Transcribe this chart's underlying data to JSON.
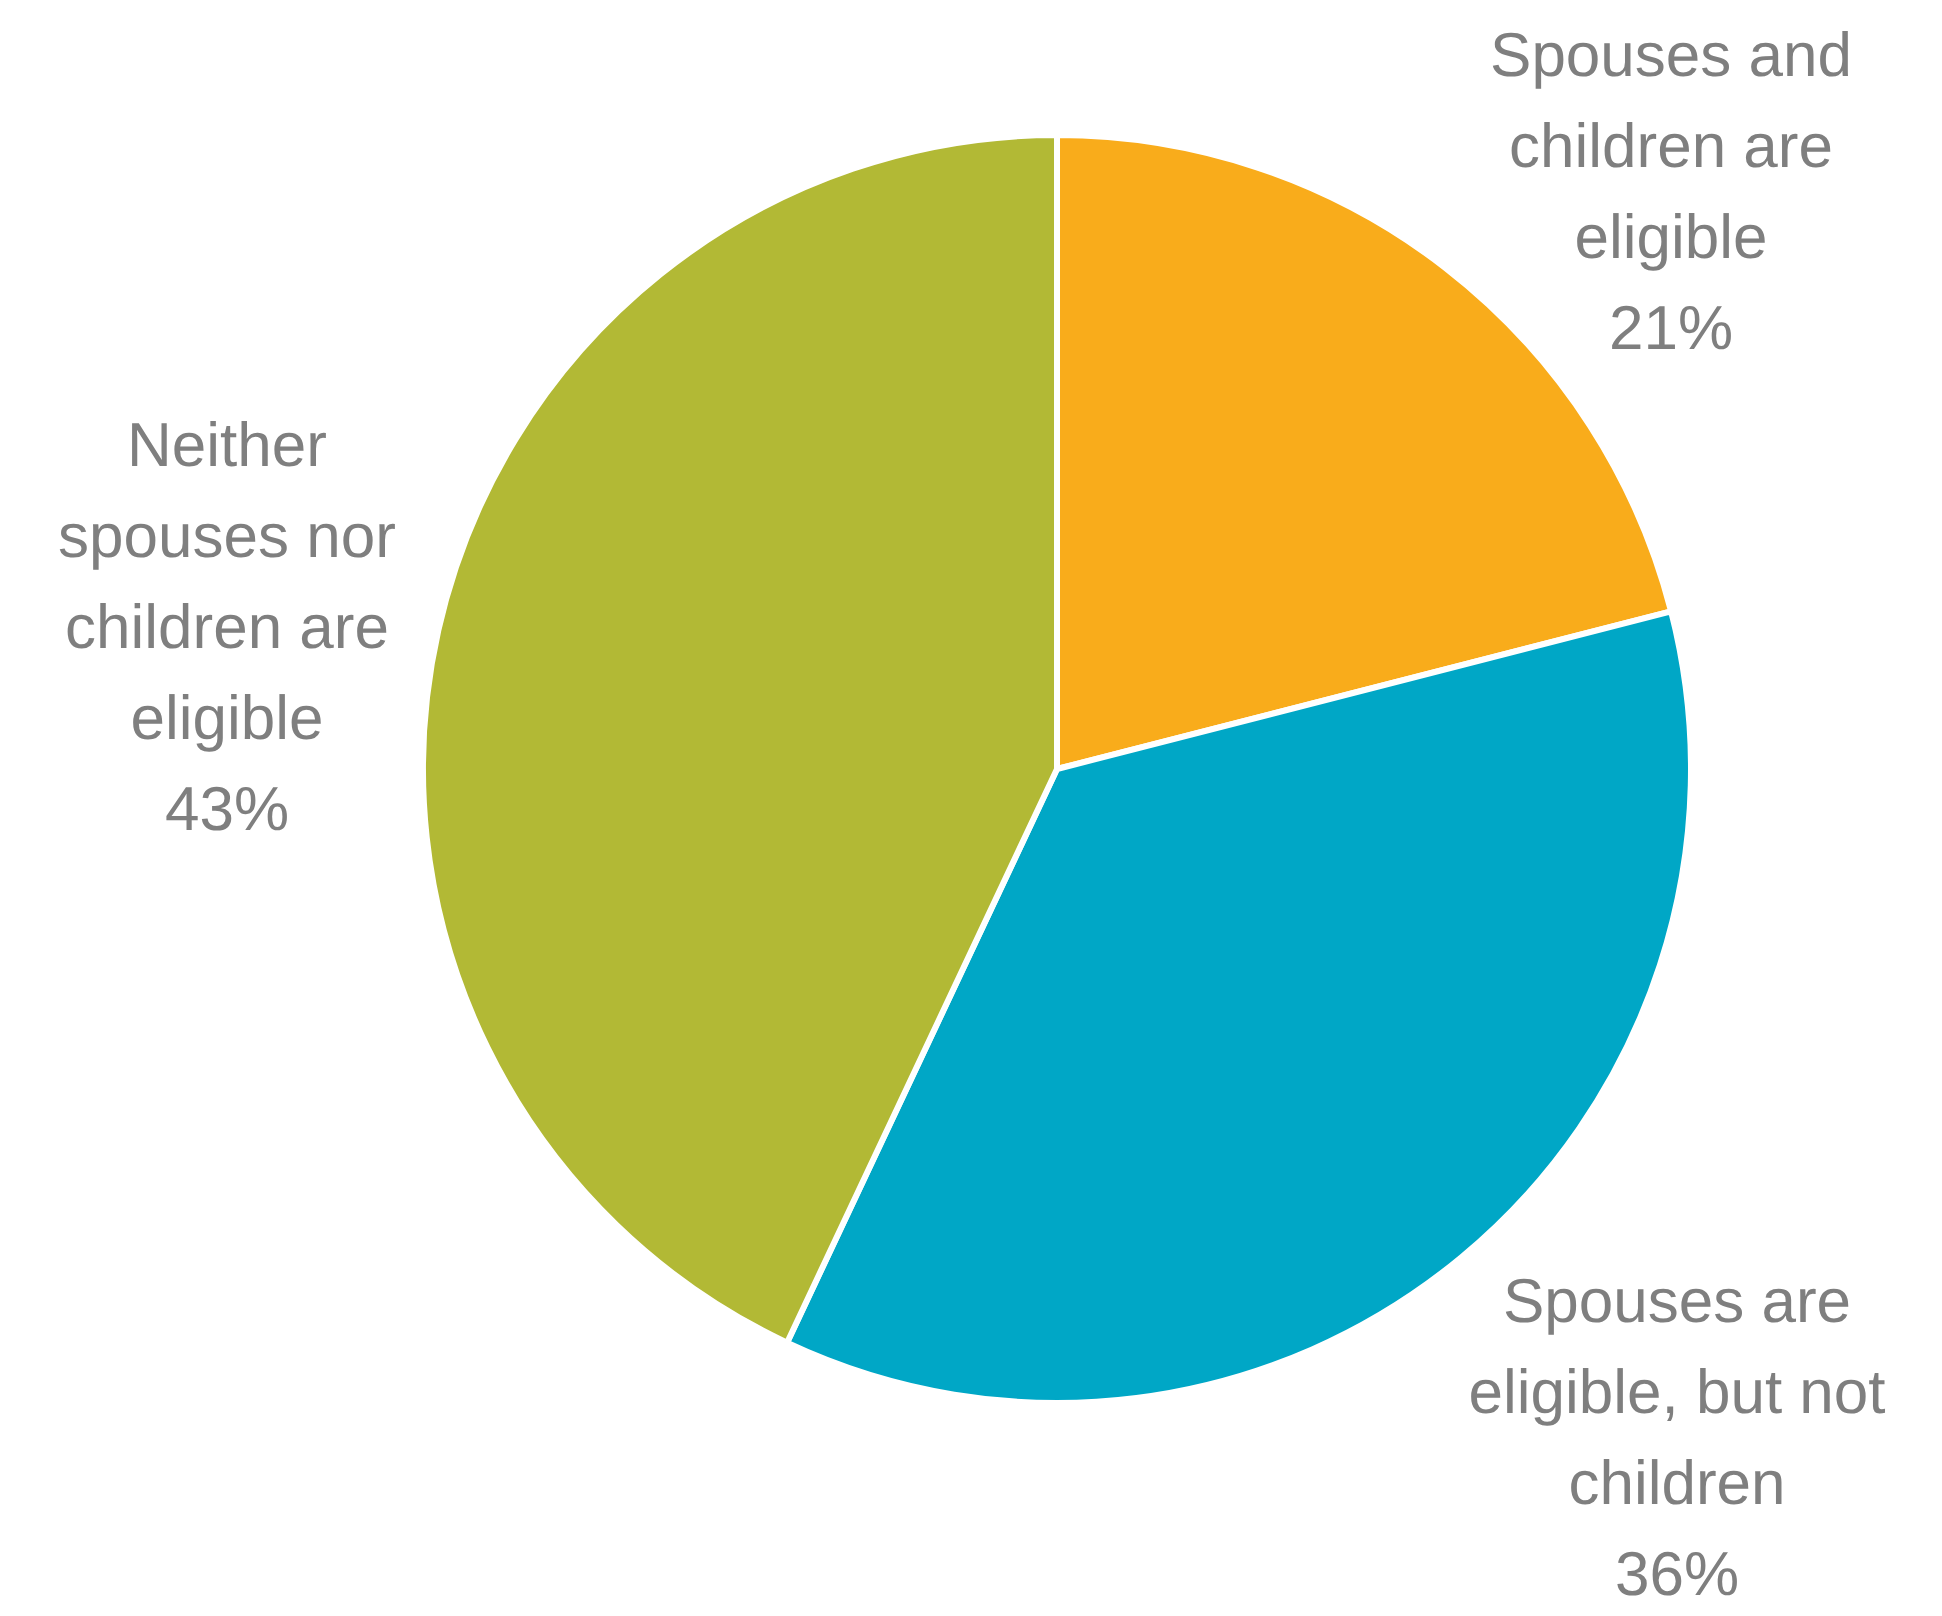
{
  "chart_data": {
    "type": "pie",
    "categories": [
      "Spouses and children are eligible",
      "Spouses are eligible, but not children",
      "Neither spouses nor children are eligible"
    ],
    "values": [
      21,
      36,
      43
    ],
    "value_labels": [
      "21%",
      "36%",
      "43%"
    ],
    "colors": [
      "#f9ac1b",
      "#00a7c6",
      "#b2b935"
    ]
  }
}
